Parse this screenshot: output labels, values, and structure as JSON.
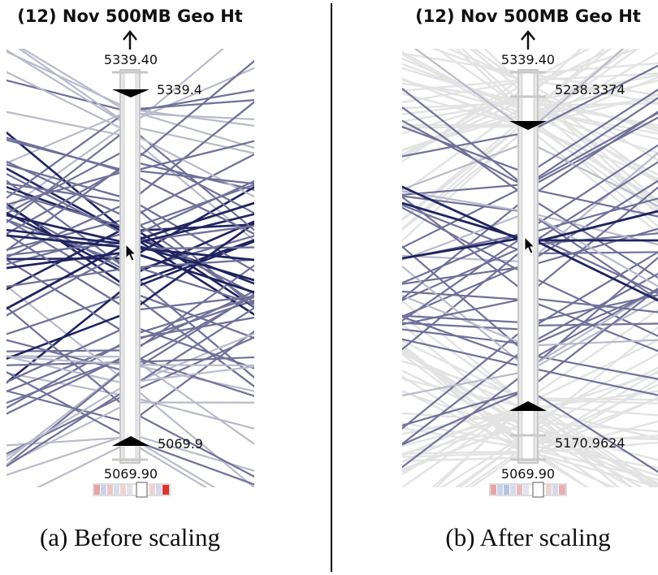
{
  "divider_color": "#000000",
  "panels": [
    {
      "id": "a",
      "title": "(12) Nov 500MB Geo Ht",
      "axis_max_label": "5339.40",
      "axis_min_label": "5069.90",
      "upper_handle_label": "5339.4",
      "lower_handle_label": "5069.9",
      "caption": "(a)  Before scaling"
    },
    {
      "id": "b",
      "title": "(12) Nov 500MB Geo Ht",
      "axis_max_label": "5339.40",
      "axis_min_label": "5069.90",
      "upper_handle_label": "5238.3374",
      "lower_handle_label": "5170.9624",
      "caption": "(b)  After scaling"
    }
  ],
  "colors": {
    "highlight_line": "#1f2460",
    "mid_line": "#6f7199",
    "faint_line": "#b9bacb",
    "context_line": "#e3e3e3",
    "axis_bar": "#e6e6e6",
    "axis_border": "#c8c8c8",
    "handle": "#000000"
  },
  "icons": {
    "axis_arrow": "up-arrow-icon",
    "cursor": "mouse-pointer-icon"
  }
}
